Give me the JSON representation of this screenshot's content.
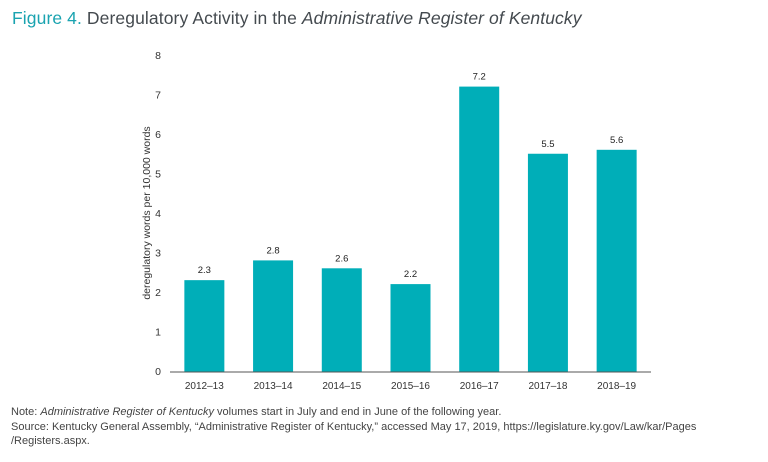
{
  "title": {
    "figure_label": "Figure 4.",
    "text_plain": " Deregulatory Activity in the ",
    "text_italic": "Administrative Register of Kentucky"
  },
  "chart_data": {
    "type": "bar",
    "title": "Figure 4. Deregulatory Activity in the Administrative Register of Kentucky",
    "categories": [
      "2012–13",
      "2013–14",
      "2014–15",
      "2015–16",
      "2016–17",
      "2017–18",
      "2018–19"
    ],
    "values": [
      2.3,
      2.8,
      2.6,
      2.2,
      7.2,
      5.5,
      5.6
    ],
    "data_labels": [
      "2.3",
      "2.8",
      "2.6",
      "2.2",
      "7.2",
      "5.5",
      "5.6"
    ],
    "xlabel": "",
    "ylabel": "deregulatory words per 10,000 words",
    "ylim": [
      0,
      8
    ],
    "yticks": [
      "0",
      "1",
      "2",
      "3",
      "4",
      "5",
      "6",
      "7",
      "8"
    ],
    "grid": false,
    "legend": null,
    "bar_color": "#00aeb8"
  },
  "notes": {
    "note_prefix": "Note: ",
    "note_italic": "Administrative Register of Kentucky",
    "note_rest": " volumes start in July and end in June of the following year.",
    "source_line1": "Source: Kentucky General Assembly, “Administrative Register of Kentucky,” accessed May 17, 2019, https://legislature.ky.gov/Law/kar/Pages",
    "source_line2": "/Registers.aspx."
  }
}
